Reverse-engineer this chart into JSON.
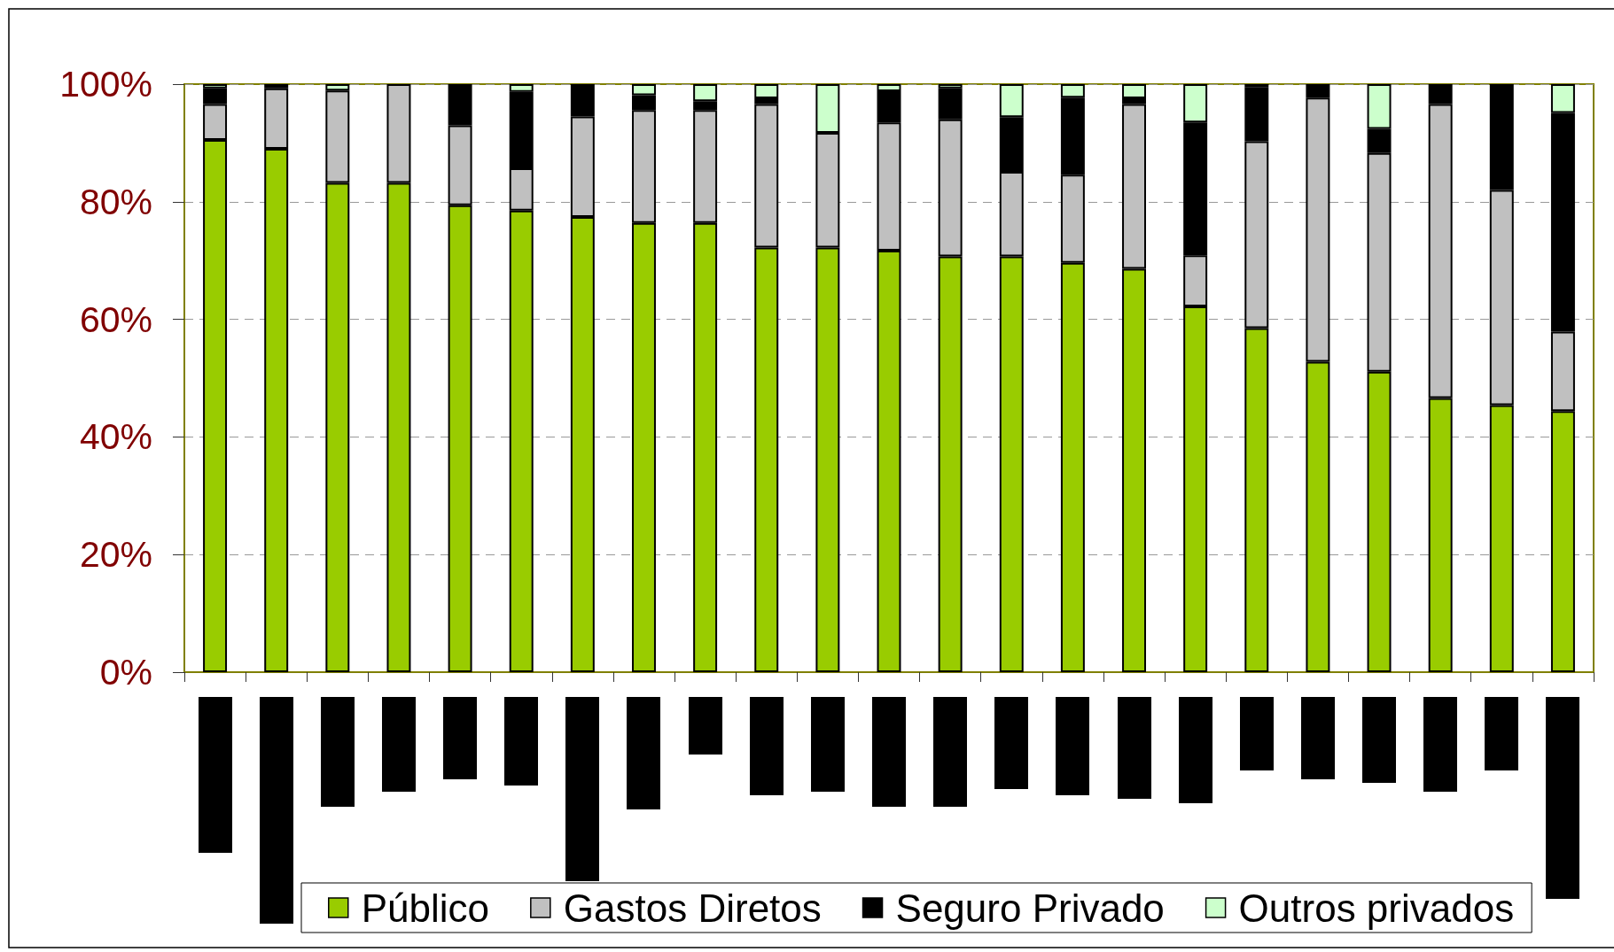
{
  "chart_data": {
    "type": "bar",
    "stacked": true,
    "categories": [
      null,
      null,
      null,
      null,
      null,
      null,
      null,
      null,
      null,
      null,
      null,
      null,
      null,
      null,
      null,
      null,
      null,
      null,
      null,
      null,
      null,
      null,
      null
    ],
    "series": [
      {
        "name": "Público",
        "color": "#99cc00",
        "values": [
          90.5,
          89.0,
          83.2,
          83.2,
          79.4,
          78.5,
          77.4,
          76.4,
          76.4,
          72.2,
          72.2,
          71.7,
          70.7,
          70.7,
          69.6,
          68.6,
          62.2,
          58.5,
          52.8,
          51.1,
          46.6,
          45.4,
          44.4
        ]
      },
      {
        "name": "Gastos Diretos",
        "color": "#c0c0c0",
        "values": [
          6.1,
          10.3,
          15.7,
          16.8,
          13.6,
          7.2,
          17.1,
          19.2,
          19.2,
          24.4,
          19.5,
          21.8,
          23.3,
          14.4,
          15.0,
          28.0,
          8.7,
          31.8,
          44.9,
          37.2,
          50.0,
          36.6,
          13.5
        ]
      },
      {
        "name": "Seguro Privado",
        "color": "#000000",
        "values": [
          2.7,
          0.7,
          0,
          0,
          7.0,
          13.0,
          5.5,
          2.5,
          1.5,
          1.0,
          0,
          5.3,
          5.3,
          9.3,
          13.1,
          1.0,
          22.6,
          9.2,
          2.3,
          4.1,
          3.4,
          18.0,
          37.2
        ]
      },
      {
        "name": "Outros privados",
        "color": "#ccffcc",
        "values": [
          0.7,
          0,
          1.1,
          0,
          0,
          1.3,
          0,
          1.9,
          2.9,
          2.4,
          8.3,
          1.2,
          0.7,
          5.6,
          2.3,
          2.4,
          6.5,
          0.5,
          0,
          7.6,
          0,
          0,
          4.9
        ]
      }
    ],
    "ylim": [
      0,
      100
    ],
    "yticks": [
      {
        "value": 0,
        "label": "0%"
      },
      {
        "value": 20,
        "label": "20%"
      },
      {
        "value": 40,
        "label": "40%"
      },
      {
        "value": 60,
        "label": "60%"
      },
      {
        "value": 80,
        "label": "80%"
      },
      {
        "value": 100,
        "label": "100%"
      }
    ],
    "grid": "y",
    "legend": "bottom"
  }
}
